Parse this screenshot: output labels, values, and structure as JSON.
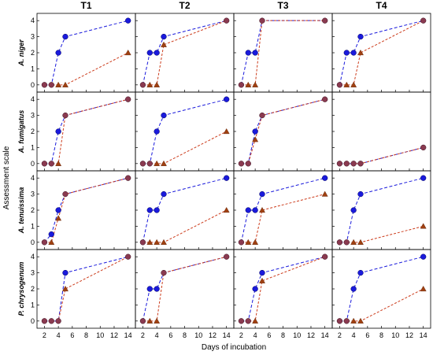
{
  "chart_data": {
    "type": "line",
    "ylabel": "Assessment scale",
    "xlabel": "Days of incubation",
    "columns": [
      "T1",
      "T2",
      "T3",
      "T4"
    ],
    "rows": [
      "A. niger",
      "A. fumigatus",
      "A. tenuissima",
      "P. chrysogenum"
    ],
    "x": [
      2,
      3,
      4,
      5,
      14
    ],
    "xticks": [
      2,
      4,
      6,
      8,
      10,
      12,
      14
    ],
    "yticks": [
      0,
      1,
      2,
      3,
      4
    ],
    "xlim": [
      1.5,
      14.6
    ],
    "ylim": [
      -0.45,
      4.45
    ],
    "colors": {
      "circle_series": "#1a1adc",
      "triangle_series": "#a04010",
      "triangle_line": "#cc3c1c",
      "overlap_marker": "#8a3a50"
    },
    "panels": [
      [
        {
          "circle": [
            0,
            0,
            2,
            3,
            4
          ],
          "triangle": [
            0,
            0,
            0,
            0,
            2
          ]
        },
        {
          "circle": [
            0,
            2,
            2,
            3,
            4
          ],
          "triangle": [
            0,
            0,
            0,
            2.5,
            4
          ]
        },
        {
          "circle": [
            0,
            2,
            2,
            4,
            4
          ],
          "triangle": [
            0,
            0,
            0,
            4,
            4
          ]
        },
        {
          "circle": [
            0,
            2,
            2,
            3,
            4
          ],
          "triangle": [
            0,
            0,
            0,
            2,
            4
          ]
        }
      ],
      [
        {
          "circle": [
            0,
            0,
            2,
            3,
            4
          ],
          "triangle": [
            0,
            0,
            0,
            3,
            4
          ]
        },
        {
          "circle": [
            0,
            0,
            2,
            3,
            4
          ],
          "triangle": [
            0,
            0,
            0,
            0,
            2
          ]
        },
        {
          "circle": [
            0,
            0,
            2,
            3,
            4
          ],
          "triangle": [
            0,
            0,
            1.5,
            3,
            4
          ]
        },
        {
          "circle": [
            0,
            0,
            0,
            0,
            1
          ],
          "triangle": [
            0,
            0,
            0,
            0,
            1
          ]
        }
      ],
      [
        {
          "circle": [
            0,
            0.5,
            2,
            3,
            4
          ],
          "triangle": [
            0,
            0,
            1.5,
            3,
            4
          ]
        },
        {
          "circle": [
            0,
            2,
            2,
            3,
            4
          ],
          "triangle": [
            0,
            0,
            0,
            0,
            2
          ]
        },
        {
          "circle": [
            0,
            2,
            2,
            3,
            4
          ],
          "triangle": [
            0,
            0,
            0,
            2,
            3
          ]
        },
        {
          "circle": [
            0,
            0,
            2,
            3,
            4
          ],
          "triangle": [
            0,
            0,
            0,
            0,
            1
          ]
        }
      ],
      [
        {
          "circle": [
            0,
            0,
            0,
            3,
            4
          ],
          "triangle": [
            0,
            0,
            0,
            2,
            4
          ]
        },
        {
          "circle": [
            0,
            2,
            2,
            3,
            4
          ],
          "triangle": [
            0,
            0,
            0,
            3,
            4
          ]
        },
        {
          "circle": [
            0,
            0,
            2,
            3,
            4
          ],
          "triangle": [
            0,
            0,
            0,
            2.5,
            4
          ]
        },
        {
          "circle": [
            0,
            0,
            2,
            3,
            4
          ],
          "triangle": [
            0,
            0,
            0,
            0,
            2
          ]
        }
      ]
    ]
  }
}
